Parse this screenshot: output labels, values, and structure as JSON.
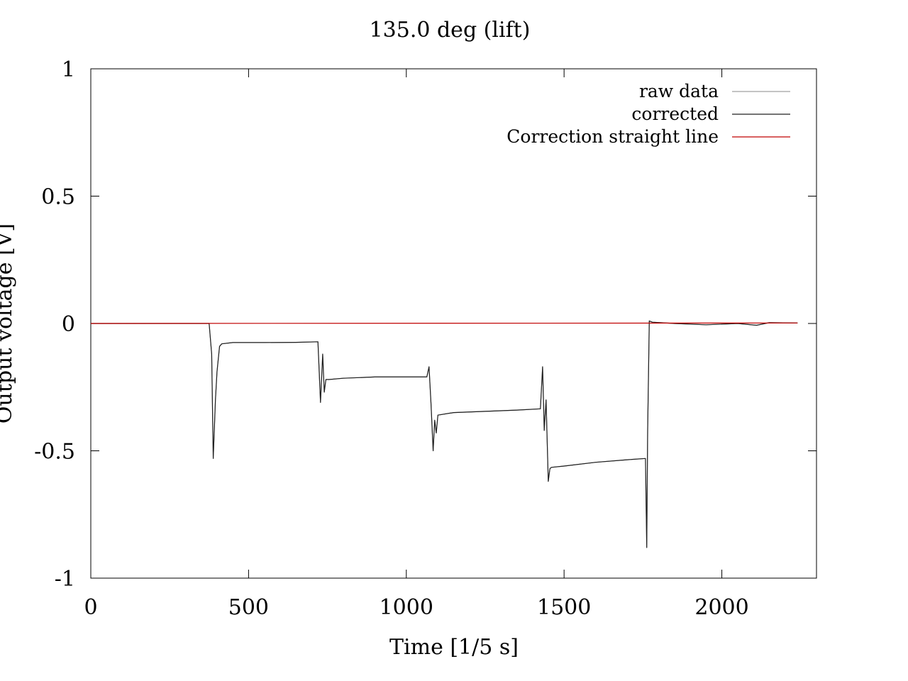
{
  "chart_data": {
    "type": "line",
    "title": "135.0 deg (lift)",
    "xlabel": "Time [1/5 s]",
    "ylabel": "Output voltage [V]",
    "xlim": [
      0,
      2300
    ],
    "ylim": [
      -1,
      1
    ],
    "xticks": [
      0,
      500,
      1000,
      1500,
      2000
    ],
    "xtick_labels": [
      "0",
      "500",
      "1000",
      "1500",
      "2000"
    ],
    "yticks": [
      1,
      0.5,
      0,
      -0.5,
      -1
    ],
    "ytick_labels": [
      "1",
      "0.5",
      "0",
      "-0.5",
      "-1"
    ],
    "grid": false,
    "legend_position": "top-right",
    "legend": [
      {
        "label": "raw data",
        "color": "#a0a0a0"
      },
      {
        "label": "corrected",
        "color": "#202020"
      },
      {
        "label": "Correction straight line",
        "color": "#c00000"
      }
    ],
    "series": [
      {
        "name": "raw data",
        "color": "#a0a0a0",
        "x": [
          0,
          375,
          383,
          388,
          395,
          400,
          408,
          415,
          450,
          550,
          650,
          720,
          728,
          735,
          740,
          745,
          755,
          800,
          900,
          1000,
          1065,
          1072,
          1078,
          1085,
          1090,
          1095,
          1100,
          1150,
          1250,
          1350,
          1425,
          1432,
          1437,
          1443,
          1450,
          1455,
          1460,
          1500,
          1600,
          1700,
          1758,
          1762,
          1765,
          1770,
          1780,
          1850,
          1950,
          2050,
          2110,
          2150,
          2240
        ],
        "y": [
          0,
          0,
          -0.12,
          -0.53,
          -0.3,
          -0.19,
          -0.09,
          -0.08,
          -0.075,
          -0.075,
          -0.074,
          -0.072,
          -0.31,
          -0.12,
          -0.27,
          -0.22,
          -0.22,
          -0.215,
          -0.21,
          -0.21,
          -0.21,
          -0.17,
          -0.31,
          -0.5,
          -0.38,
          -0.43,
          -0.36,
          -0.35,
          -0.345,
          -0.34,
          -0.335,
          -0.17,
          -0.42,
          -0.3,
          -0.62,
          -0.57,
          -0.565,
          -0.56,
          -0.545,
          -0.535,
          -0.53,
          -0.88,
          -0.42,
          0.01,
          0.005,
          0,
          -0.005,
          0,
          -0.007,
          0.003,
          0.002
        ]
      },
      {
        "name": "corrected",
        "color": "#202020",
        "x": [
          0,
          375,
          383,
          388,
          395,
          400,
          408,
          415,
          450,
          550,
          650,
          720,
          728,
          735,
          740,
          745,
          755,
          800,
          900,
          1000,
          1065,
          1072,
          1078,
          1085,
          1090,
          1095,
          1100,
          1150,
          1250,
          1350,
          1425,
          1432,
          1437,
          1443,
          1450,
          1455,
          1460,
          1500,
          1600,
          1700,
          1758,
          1762,
          1765,
          1770,
          1780,
          1850,
          1950,
          2050,
          2110,
          2150,
          2240
        ],
        "y": [
          0,
          0,
          -0.12,
          -0.53,
          -0.3,
          -0.19,
          -0.09,
          -0.08,
          -0.075,
          -0.075,
          -0.074,
          -0.072,
          -0.31,
          -0.12,
          -0.27,
          -0.22,
          -0.22,
          -0.215,
          -0.21,
          -0.21,
          -0.21,
          -0.17,
          -0.31,
          -0.5,
          -0.38,
          -0.43,
          -0.36,
          -0.35,
          -0.345,
          -0.34,
          -0.335,
          -0.17,
          -0.42,
          -0.3,
          -0.62,
          -0.57,
          -0.565,
          -0.56,
          -0.545,
          -0.535,
          -0.53,
          -0.88,
          -0.42,
          0.01,
          0.005,
          0,
          -0.005,
          0,
          -0.007,
          0.003,
          0.002
        ]
      },
      {
        "name": "Correction straight line",
        "color": "#c00000",
        "x": [
          0,
          2240
        ],
        "y": [
          0,
          0.002
        ]
      }
    ]
  }
}
